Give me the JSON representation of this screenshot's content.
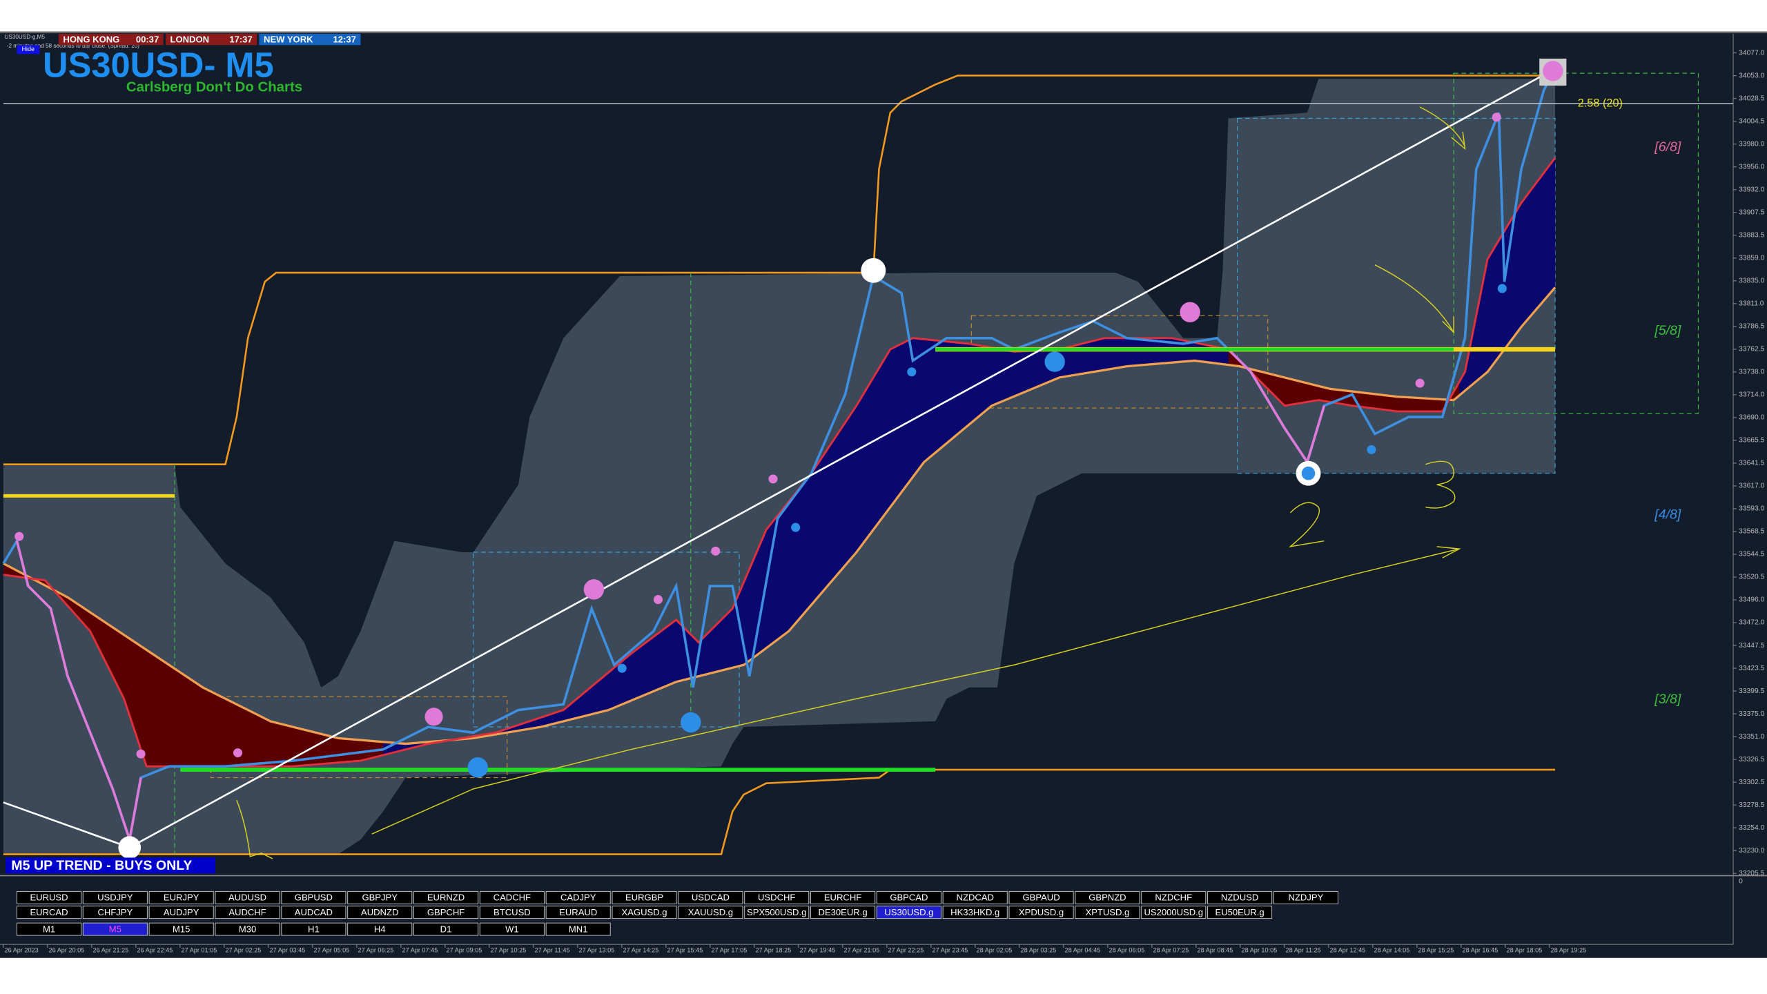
{
  "header": {
    "window_caption": "US30USD-g,M5",
    "countdown": "-2 minutes and 58 seconds to bar close. (Spread: 20)",
    "hide_button": "Hide",
    "title": "US30USD- M5",
    "subtitle": "Carlsberg Don't Do Charts",
    "clocks": [
      {
        "city": "HONG KONG",
        "time": "00:37"
      },
      {
        "city": "LONDON",
        "time": "17:37"
      },
      {
        "city": "NEW YORK",
        "time": "12:37"
      }
    ]
  },
  "levels": [
    "[6/8]",
    "[5/8]",
    "[4/8]",
    "[3/8]"
  ],
  "spread_label": "2.58 (20)",
  "trend_label": "M5 UP TREND - BUYS ONLY",
  "price_axis": [
    "34077.0",
    "34053.0",
    "34028.5",
    "34004.5",
    "33980.0",
    "33956.0",
    "33932.0",
    "33907.5",
    "33883.5",
    "33859.0",
    "33835.0",
    "33811.0",
    "33786.5",
    "33762.5",
    "33738.0",
    "33714.0",
    "33690.0",
    "33665.5",
    "33641.5",
    "33617.0",
    "33593.0",
    "33568.5",
    "33544.5",
    "33520.5",
    "33496.0",
    "33472.0",
    "33447.5",
    "33423.5",
    "33399.5",
    "33375.0",
    "33351.0",
    "33326.5",
    "33302.5",
    "33278.5",
    "33254.0",
    "33230.0",
    "33205.5"
  ],
  "indicator_axis": [
    "0"
  ],
  "time_axis": [
    "26 Apr 2023",
    "26 Apr 20:05",
    "26 Apr 21:25",
    "26 Apr 22:45",
    "27 Apr 01:05",
    "27 Apr 02:25",
    "27 Apr 03:45",
    "27 Apr 05:05",
    "27 Apr 06:25",
    "27 Apr 07:45",
    "27 Apr 09:05",
    "27 Apr 10:25",
    "27 Apr 11:45",
    "27 Apr 13:05",
    "27 Apr 14:25",
    "27 Apr 15:45",
    "27 Apr 17:05",
    "27 Apr 18:25",
    "27 Apr 19:45",
    "27 Apr 21:05",
    "27 Apr 22:25",
    "27 Apr 23:45",
    "28 Apr 02:05",
    "28 Apr 03:25",
    "28 Apr 04:45",
    "28 Apr 06:05",
    "28 Apr 07:25",
    "28 Apr 08:45",
    "28 Apr 10:05",
    "28 Apr 11:25",
    "28 Apr 12:45",
    "28 Apr 14:05",
    "28 Apr 15:25",
    "28 Apr 16:45",
    "28 Apr 18:05",
    "28 Apr 19:25"
  ],
  "symbol_buttons": [
    [
      "EURUSD",
      "USDJPY",
      "EURJPY",
      "AUDUSD",
      "GBPUSD",
      "GBPJPY",
      "EURNZD",
      "CADCHF",
      "CADJPY",
      "EURGBP",
      "USDCAD",
      "USDCHF",
      "EURCHF",
      "GBPCAD",
      "NZDCAD",
      "GBPAUD",
      "GBPNZD",
      "NZDCHF",
      "NZDUSD",
      "NZDJPY"
    ],
    [
      "EURCAD",
      "CHFJPY",
      "AUDJPY",
      "AUDCHF",
      "AUDCAD",
      "AUDNZD",
      "GBPCHF",
      "BTCUSD",
      "EURAUD",
      "XAGUSD.g",
      "XAUUSD.g",
      "SPX500USD.g",
      "DE30EUR.g",
      "US30USD.g",
      "HK33HKD.g",
      "XPDUSD.g",
      "XPTUSD.g",
      "US2000USD.g",
      "EU50EUR.g"
    ]
  ],
  "selected_symbol": "US30USD.g",
  "timeframe_buttons": [
    "M1",
    "M5",
    "M15",
    "M30",
    "H1",
    "H4",
    "D1",
    "W1",
    "MN1"
  ],
  "selected_timeframe": "M5"
}
